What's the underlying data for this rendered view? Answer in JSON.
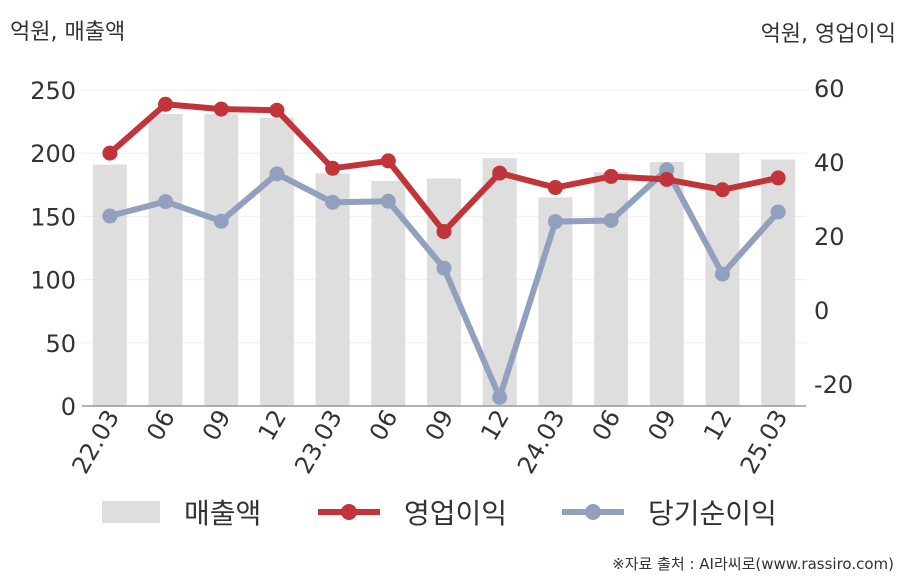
{
  "units": {
    "left": "억원, 매출액",
    "right": "억원, 영업이익"
  },
  "colors": {
    "bar": "#dedede",
    "operating": "#c0343a",
    "net": "#91a0bd",
    "axis": "#999999",
    "grid": "#eeeeee"
  },
  "source": "※자료 출처 : AI라씨로(www.rassiro.com)",
  "chart_data": {
    "type": "bar+line",
    "categories": [
      "22.03",
      "06",
      "09",
      "12",
      "23.03",
      "06",
      "09",
      "12",
      "24.03",
      "06",
      "09",
      "12",
      "25.03"
    ],
    "left_axis": {
      "label": "억원, 매출액",
      "ylim": [
        0,
        250
      ],
      "ticks": [
        0,
        50,
        100,
        150,
        200,
        250
      ]
    },
    "right_axis": {
      "label": "억원, 영업이익",
      "ylim": [
        -27,
        60
      ],
      "ticks": [
        -20,
        0,
        20,
        40,
        60
      ]
    },
    "series": [
      {
        "name": "매출액",
        "type": "bar",
        "axis": "left",
        "values": [
          191,
          231,
          231,
          228,
          184,
          178,
          180,
          196,
          165,
          185,
          193,
          200,
          195
        ]
      },
      {
        "name": "영업이익",
        "type": "line",
        "axis": "right",
        "values": [
          42.4,
          55.6,
          54.3,
          54.0,
          38.3,
          40.3,
          21.2,
          37.0,
          33.1,
          36.1,
          35.3,
          32.5,
          35.7
        ]
      },
      {
        "name": "당기순이익",
        "type": "line",
        "axis": "right",
        "values": [
          25.4,
          29.3,
          24.0,
          36.8,
          29.1,
          29.4,
          11.3,
          -23.6,
          23.9,
          24.2,
          37.9,
          9.7,
          26.5
        ]
      }
    ],
    "grid": true,
    "legend_position": "bottom"
  }
}
